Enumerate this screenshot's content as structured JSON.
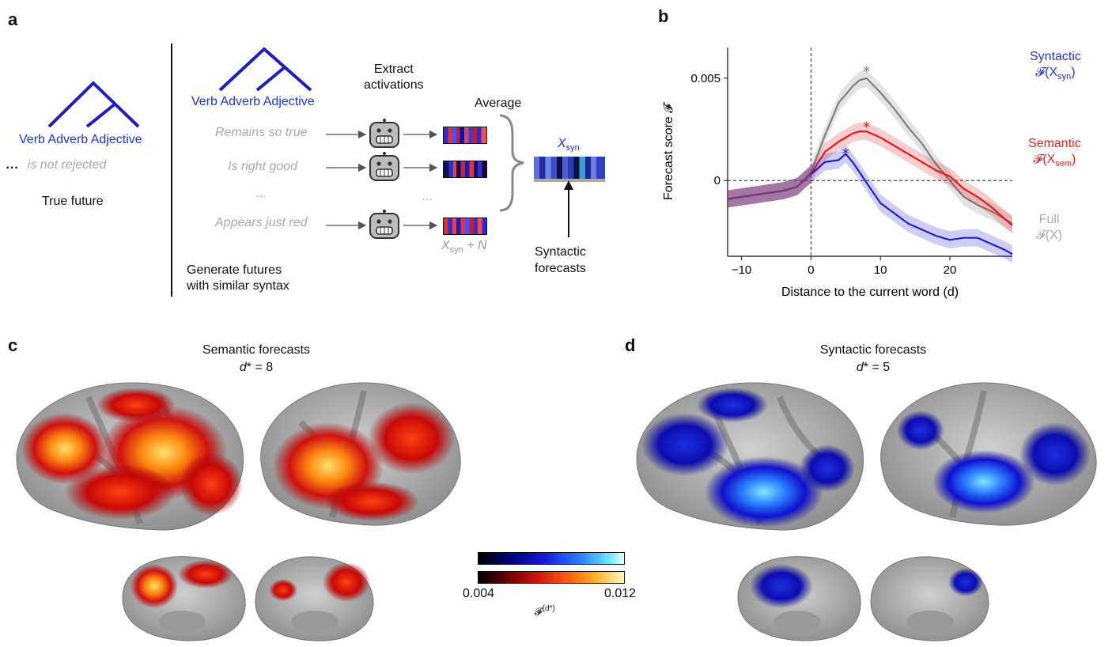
{
  "panels": {
    "a": "a",
    "b": "b",
    "c": "c",
    "d": "d"
  },
  "panel_a": {
    "tree_words_left": [
      "Verb",
      "Adverb",
      "Adjective"
    ],
    "continuation": "is not rejected",
    "ellipsis": "...",
    "true_future": "True future",
    "tree_words_right": [
      "Verb",
      "Adverb",
      "Adjective"
    ],
    "extract_line1": "Extract",
    "extract_line2": "activations",
    "average": "Average",
    "futures": [
      "Remains so true",
      "Is right good",
      "Appears just red"
    ],
    "middle_dots": "...",
    "xsyn_plus_n_var": "X",
    "xsyn_plus_n_sub": "syn",
    "xsyn_plus_n_rest": " + N",
    "xsyn_var": "X",
    "xsyn_sub": "syn",
    "syntactic_forecasts_line1": "Syntactic",
    "syntactic_forecasts_line2": "forecasts",
    "generate_line1": "Generate futures",
    "generate_line2": "with similar syntax"
  },
  "panel_b": {
    "legend_syntactic": "Syntactic",
    "legend_syntactic_f": "𝓕(X",
    "legend_syntactic_sub": "syn",
    "legend_semantic": "Semantic",
    "legend_semantic_f": "𝓕(X",
    "legend_semantic_sub": "sem",
    "legend_full": "Full",
    "legend_full_f": "𝓕(X)",
    "colors": {
      "syntactic": "#1f1fcc",
      "semantic": "#e41a1c",
      "full": "#808080",
      "pre": "#7a3d7a"
    }
  },
  "chart_data": {
    "type": "line",
    "xlabel": "Distance to the current word (d)",
    "ylabel": "Forecast score 𝓕",
    "xlim": [
      -12,
      29
    ],
    "ylim": [
      -0.0037,
      0.0065
    ],
    "x_ticks": [
      -10,
      0,
      10,
      20
    ],
    "y_ticks": [
      0,
      0.005
    ],
    "x_tick_labels": [
      "−10",
      "0",
      "10",
      "20"
    ],
    "y_tick_labels": [
      "0",
      "0.005"
    ],
    "x": [
      -12,
      -10,
      -8,
      -6,
      -4,
      -2,
      0,
      2,
      4,
      5,
      6,
      7,
      8,
      10,
      12,
      14,
      16,
      18,
      20,
      22,
      24,
      26,
      28,
      29
    ],
    "series": [
      {
        "name": "Syntactic",
        "color": "#1f1fcc",
        "values": [
          -0.0009,
          -0.0008,
          -0.0007,
          -0.0006,
          -0.0005,
          -0.0003,
          0.0003,
          0.0009,
          0.001,
          0.0013,
          0.0009,
          0.0004,
          -0.0001,
          -0.0011,
          -0.0016,
          -0.0021,
          -0.0024,
          -0.0027,
          -0.0029,
          -0.0028,
          -0.0028,
          -0.0031,
          -0.0034,
          -0.0036
        ],
        "peak": [
          5,
          0.0014
        ]
      },
      {
        "name": "Semantic",
        "color": "#e41a1c",
        "values": [
          -0.0009,
          -0.0008,
          -0.0007,
          -0.0006,
          -0.0005,
          -0.0003,
          0.0003,
          0.0014,
          0.0019,
          0.0021,
          0.0023,
          0.0024,
          0.0024,
          0.0021,
          0.0017,
          0.0013,
          0.0009,
          0.0005,
          0.0002,
          -0.0004,
          -0.0008,
          -0.0013,
          -0.0019,
          -0.0022
        ],
        "peak": [
          8,
          0.0027
        ]
      },
      {
        "name": "Full",
        "color": "#808080",
        "values": [
          -0.0009,
          -0.0008,
          -0.0007,
          -0.0006,
          -0.0005,
          -0.0003,
          0.0004,
          0.0022,
          0.0038,
          0.0042,
          0.0046,
          0.0049,
          0.005,
          0.0043,
          0.0035,
          0.0026,
          0.0018,
          0.0008,
          0.0,
          -0.0008,
          -0.0012,
          -0.0015,
          -0.0019,
          -0.0021
        ],
        "peak": [
          8,
          0.0054
        ]
      }
    ]
  },
  "panel_c": {
    "title": "Semantic forecasts",
    "dstar_var": "d",
    "dstar_rest": "* = 8"
  },
  "panel_d": {
    "title": "Syntactic forecasts",
    "dstar_var": "d",
    "dstar_rest": "* = 5"
  },
  "colorbar": {
    "min": "0.004",
    "max": "0.012",
    "label": "𝓕",
    "label_sup": "(d*)"
  }
}
